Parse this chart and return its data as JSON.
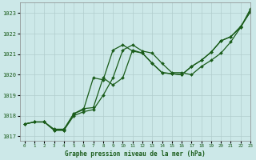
{
  "title": "Graphe pression niveau de la mer (hPa)",
  "bg_color": "#cce8e8",
  "grid_color": "#b0cccc",
  "line_color": "#1a5c1a",
  "xlim": [
    -0.5,
    23
  ],
  "ylim": [
    1016.8,
    1023.5
  ],
  "yticks": [
    1017,
    1018,
    1019,
    1020,
    1021,
    1022,
    1023
  ],
  "xticks": [
    0,
    1,
    2,
    3,
    4,
    5,
    6,
    7,
    8,
    9,
    10,
    11,
    12,
    13,
    14,
    15,
    16,
    17,
    18,
    19,
    20,
    21,
    22,
    23
  ],
  "series": [
    [
      1017.6,
      1017.7,
      1017.7,
      1017.3,
      1017.3,
      1018.0,
      1018.2,
      1018.3,
      1019.0,
      1019.85,
      1021.2,
      1021.45,
      1021.15,
      1021.05,
      1020.55,
      1020.1,
      1020.1,
      1020.0,
      1020.4,
      1020.7,
      1021.05,
      1021.6,
      1022.3,
      1023.2
    ],
    [
      1017.6,
      1017.7,
      1017.7,
      1017.3,
      1017.3,
      1018.1,
      1018.3,
      1019.85,
      1019.75,
      1021.2,
      1021.45,
      1021.15,
      1021.05,
      1020.55,
      1020.1,
      1020.05,
      1020.0,
      1020.4,
      1020.7,
      1021.1,
      1021.65,
      1021.85,
      1022.3,
      1023.1
    ],
    [
      1017.6,
      1017.7,
      1017.7,
      1017.35,
      1017.35,
      1018.1,
      1018.35,
      1018.4,
      1019.85,
      1019.5,
      1019.85,
      1021.2,
      1021.05,
      1020.55,
      1020.1,
      1020.05,
      1020.0,
      1020.4,
      1020.7,
      1021.1,
      1021.65,
      1021.85,
      1022.35,
      1023.05
    ]
  ]
}
